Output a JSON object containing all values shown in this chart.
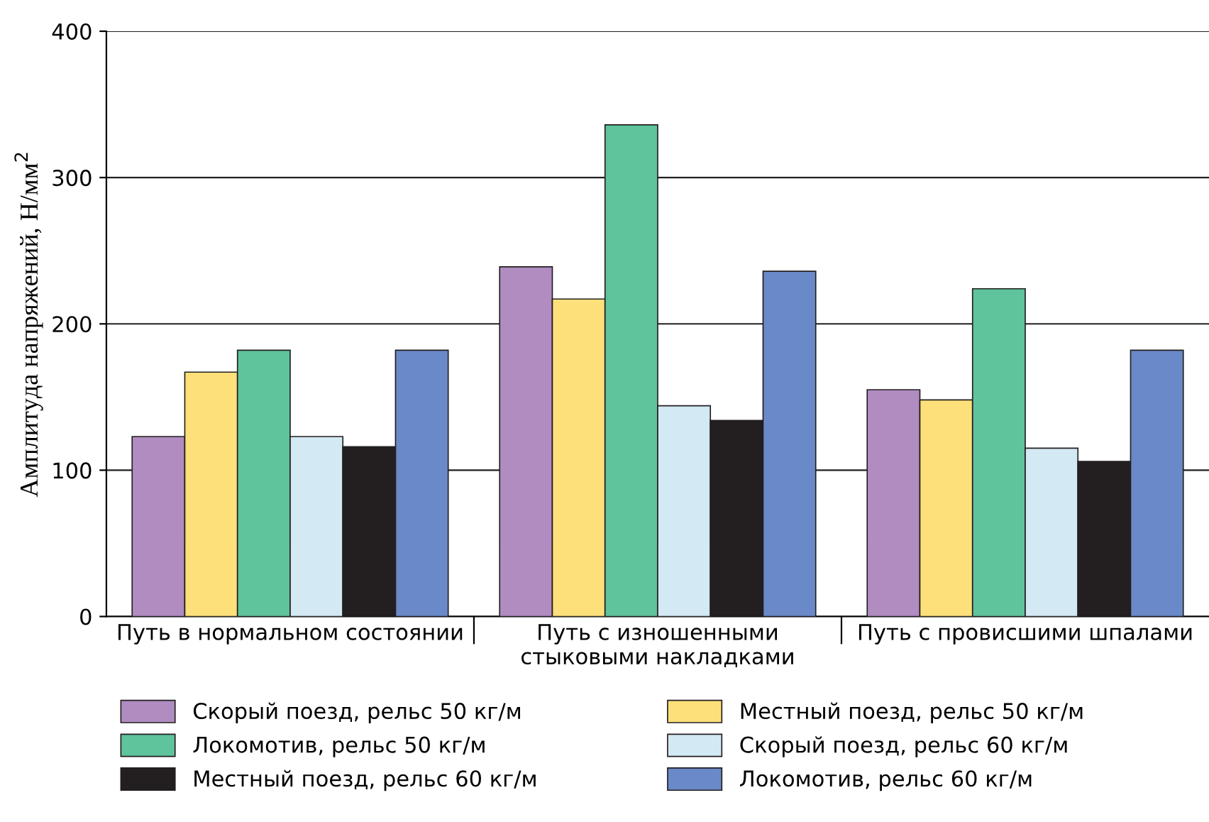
{
  "chart_data": {
    "type": "bar",
    "ylabel": "Амплитуда напряжений, Н/мм$^{2}$",
    "categories": [
      "Путь в нормальном состоянии",
      "Путь с изношенными\nстыковыми накладками",
      "Путь с провисшими шпалами"
    ],
    "series": [
      {
        "name": "Скорый поезд, рельс 50 кг/м",
        "color": "#b08cc0",
        "values": [
          123,
          239,
          155
        ]
      },
      {
        "name": "Местный поезд, рельс 50 кг/м",
        "color": "#fde07a",
        "values": [
          167,
          217,
          148
        ]
      },
      {
        "name": "Локомотив, рельс 50 кг/м",
        "color": "#5fc39b",
        "values": [
          182,
          336,
          224
        ]
      },
      {
        "name": "Скорый поезд, рельс 60 кг/м",
        "color": "#d3e9f3",
        "values": [
          123,
          144,
          115
        ]
      },
      {
        "name": "Местный поезд, рельс 60 кг/м",
        "color": "#231f20",
        "values": [
          116,
          134,
          106
        ]
      },
      {
        "name": "Локомотив, рельс 60 кг/м",
        "color": "#6a89c8",
        "values": [
          182,
          236,
          182
        ]
      }
    ],
    "ylim": [
      0,
      400
    ],
    "yticks": [
      0,
      100,
      200,
      300,
      400
    ],
    "grid": "y",
    "legend": "bottom"
  }
}
